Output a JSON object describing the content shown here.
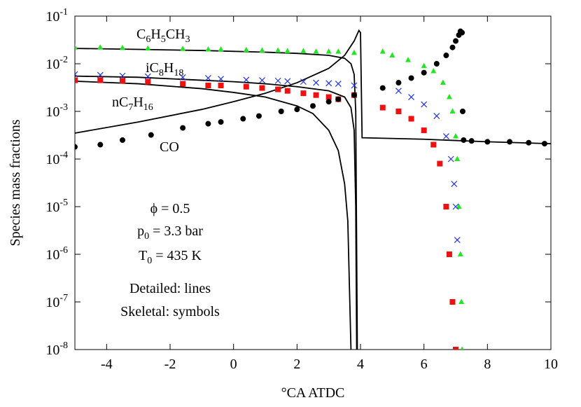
{
  "chart_data": {
    "type": "line",
    "yscale": "log",
    "xlabel": "°CA ATDC",
    "ylabel": "Species mass fractions",
    "xlim": [
      -5,
      10
    ],
    "xticks": [
      -4,
      -2,
      0,
      2,
      4,
      6,
      8,
      10
    ],
    "ylim": [
      1e-08,
      0.1
    ],
    "yticks": [
      {
        "value": 1e-08,
        "label": "10-8"
      },
      {
        "value": 1e-07,
        "label": "10-7"
      },
      {
        "value": 1e-06,
        "label": "10-6"
      },
      {
        "value": 1e-05,
        "label": "10-5"
      },
      {
        "value": 0.0001,
        "label": "10-4"
      },
      {
        "value": 0.001,
        "label": "10-3"
      },
      {
        "value": 0.01,
        "label": "10-2"
      },
      {
        "value": 0.1,
        "label": "10-1"
      }
    ],
    "annotations": [
      "C6H5CH3",
      "iC8H18",
      "nC7H16",
      "CO",
      "ϕ = 0.5",
      "p0 = 3.3 bar",
      "T0 = 435 K",
      "Detailed: lines",
      "Skeletal: symbols"
    ],
    "series": [
      {
        "marker": "line",
        "color": "#000000",
        "x": [
          -5,
          -3,
          -1,
          1,
          2,
          3,
          3.5,
          3.7,
          3.8,
          3.85,
          3.9
        ],
        "values": [
          0.021,
          0.02,
          0.019,
          0.0175,
          0.0165,
          0.015,
          0.013,
          0.01,
          0.006,
          0.001,
          1e-08
        ]
      },
      {
        "marker": "line",
        "color": "#000000",
        "x": [
          -5,
          -3,
          -1,
          0,
          1,
          2,
          3,
          3.5,
          3.7,
          3.8,
          3.85,
          3.88
        ],
        "values": [
          0.0055,
          0.0052,
          0.0045,
          0.0042,
          0.0038,
          0.0033,
          0.0027,
          0.002,
          0.0012,
          0.0004,
          1e-05,
          1e-08
        ]
      },
      {
        "marker": "line",
        "color": "#000000",
        "x": [
          -5,
          -3,
          -1,
          0,
          1,
          2,
          2.5,
          3,
          3.3,
          3.5,
          3.6,
          3.7
        ],
        "values": [
          0.0043,
          0.0038,
          0.003,
          0.0025,
          0.002,
          0.0013,
          0.0009,
          0.0004,
          0.00015,
          3e-05,
          5e-06,
          1e-08
        ]
      },
      {
        "marker": "line",
        "color": "#000000",
        "x": [
          -5,
          -3,
          -1,
          0,
          1,
          2,
          3,
          3.5,
          3.8,
          3.95,
          4.0,
          4.05,
          6,
          8,
          10
        ],
        "values": [
          0.00035,
          0.0006,
          0.0011,
          0.0016,
          0.0024,
          0.004,
          0.008,
          0.015,
          0.03,
          0.05,
          0.045,
          0.00028,
          0.00026,
          0.00023,
          0.00021
        ]
      },
      {
        "marker": "triangle",
        "color": "#22e622",
        "x": [
          -5,
          -4.2,
          -3.5,
          -2.7,
          -1.6,
          -0.8,
          -0.4,
          0.4,
          0.9,
          1.4,
          1.7,
          2.2,
          2.6,
          3,
          3.3,
          3.8,
          4.7,
          5,
          5.5,
          6,
          6.3,
          6.6,
          6.8,
          6.9,
          7,
          7.05,
          7.1,
          7.15,
          7.18,
          7.2
        ],
        "values": [
          0.022,
          0.022,
          0.0215,
          0.021,
          0.0205,
          0.02,
          0.02,
          0.0195,
          0.019,
          0.019,
          0.0185,
          0.0185,
          0.018,
          0.018,
          0.018,
          0.017,
          0.018,
          0.015,
          0.012,
          0.009,
          0.007,
          0.004,
          0.002,
          0.001,
          0.0003,
          0.0001,
          1e-05,
          1e-06,
          1e-07,
          1e-08
        ]
      },
      {
        "marker": "x",
        "color": "#2233dd",
        "x": [
          -5,
          -4.2,
          -3.5,
          -2.7,
          -1.6,
          -0.8,
          -0.4,
          0.4,
          0.9,
          1.4,
          1.7,
          2.2,
          2.6,
          3,
          3.3,
          3.8,
          5.2,
          5.6,
          6,
          6.4,
          6.7,
          6.85,
          6.95,
          7,
          7.05
        ],
        "values": [
          0.006,
          0.0058,
          0.0056,
          0.0054,
          0.0052,
          0.005,
          0.0048,
          0.0046,
          0.0045,
          0.0044,
          0.0043,
          0.0042,
          0.004,
          0.0039,
          0.0038,
          0.0035,
          0.0027,
          0.002,
          0.0014,
          0.0008,
          0.0003,
          0.0001,
          3e-05,
          1e-05,
          2e-06
        ]
      },
      {
        "marker": "square",
        "color": "#ee1111",
        "x": [
          -5,
          -4.2,
          -3.5,
          -2.7,
          -1.6,
          -0.8,
          -0.4,
          0.4,
          0.9,
          1.4,
          1.7,
          2.2,
          2.6,
          3,
          3.3,
          3.8,
          4.7,
          5.2,
          5.6,
          6,
          6.3,
          6.5,
          6.7,
          6.8,
          6.9,
          7
        ],
        "values": [
          0.0045,
          0.0045,
          0.0044,
          0.0042,
          0.0038,
          0.0035,
          0.0035,
          0.0033,
          0.0031,
          0.0029,
          0.0027,
          0.0024,
          0.0022,
          0.002,
          0.0018,
          0.0022,
          0.0012,
          0.001,
          0.0007,
          0.0004,
          0.0002,
          8e-05,
          1e-05,
          1e-06,
          1e-07,
          1e-08
        ]
      },
      {
        "marker": "circle",
        "color": "#000000",
        "x": [
          -5,
          -4.2,
          -3.5,
          -2.6,
          -1.6,
          -0.8,
          -0.4,
          0.3,
          0.8,
          1.5,
          2,
          2.5,
          3,
          3.3,
          3.8,
          4.7,
          5.2,
          5.6,
          6,
          6.4,
          6.7,
          6.9,
          7,
          7.1,
          7.15,
          7.2,
          7.22,
          7.25,
          7.5,
          8,
          8.7,
          9.3,
          9.8
        ],
        "values": [
          0.00018,
          0.0002,
          0.00025,
          0.00032,
          0.00045,
          0.00055,
          0.0006,
          0.0007,
          0.0008,
          0.001,
          0.0011,
          0.0013,
          0.0016,
          0.0018,
          0.0022,
          0.0031,
          0.004,
          0.005,
          0.0065,
          0.01,
          0.015,
          0.022,
          0.03,
          0.04,
          0.048,
          0.045,
          0.001,
          0.00025,
          0.00024,
          0.00023,
          0.00023,
          0.00022,
          0.00021
        ]
      }
    ]
  }
}
